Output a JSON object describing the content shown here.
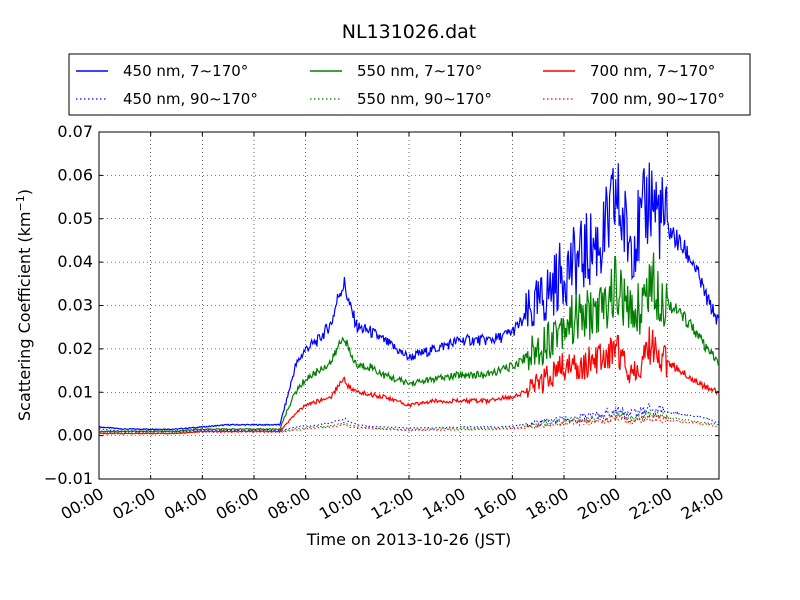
{
  "chart_data": {
    "type": "line",
    "title": "NL131026.dat",
    "xlabel": "Time on 2013-10-26 (JST)",
    "ylabel": "Scattering Coefficient (km",
    "ylabel_exponent": "−1",
    "ylabel_suffix": ")",
    "xlim": [
      "00:00",
      "24:00"
    ],
    "ylim": [
      -0.01,
      0.07
    ],
    "grid": true,
    "legend_position": "top",
    "x_ticks": [
      "00:00",
      "02:00",
      "04:00",
      "06:00",
      "08:00",
      "10:00",
      "12:00",
      "14:00",
      "16:00",
      "18:00",
      "20:00",
      "22:00",
      "24:00"
    ],
    "y_ticks": [
      "−0.01",
      "0.00",
      "0.01",
      "0.02",
      "0.03",
      "0.04",
      "0.05",
      "0.06",
      "0.07"
    ],
    "x_hours": [
      0,
      1,
      2,
      3,
      4,
      5,
      6,
      7,
      7.3,
      7.6,
      8,
      8.5,
      9,
      9.3,
      9.5,
      9.7,
      10,
      10.5,
      11,
      12,
      13,
      14,
      15,
      15.5,
      16,
      16.5,
      17,
      17.5,
      18,
      18.5,
      19,
      19.5,
      19.8,
      20,
      20.5,
      21,
      21.3,
      21.6,
      22,
      22.5,
      23,
      23.5,
      24
    ],
    "series": [
      {
        "name": "450 nm, 7∼170°",
        "color": "#0000ff",
        "style": "solid",
        "values": [
          0.002,
          0.0015,
          0.0015,
          0.0015,
          0.002,
          0.0025,
          0.0025,
          0.0025,
          0.009,
          0.016,
          0.02,
          0.022,
          0.026,
          0.033,
          0.035,
          0.03,
          0.025,
          0.024,
          0.022,
          0.018,
          0.02,
          0.022,
          0.022,
          0.0225,
          0.024,
          0.027,
          0.03,
          0.034,
          0.038,
          0.04,
          0.043,
          0.045,
          0.05,
          0.055,
          0.045,
          0.048,
          0.056,
          0.052,
          0.048,
          0.044,
          0.04,
          0.032,
          0.026
        ]
      },
      {
        "name": "550 nm, 7∼170°",
        "color": "#008000",
        "style": "solid",
        "values": [
          0.001,
          0.001,
          0.001,
          0.001,
          0.0015,
          0.0015,
          0.0015,
          0.0015,
          0.006,
          0.01,
          0.013,
          0.015,
          0.017,
          0.021,
          0.023,
          0.019,
          0.016,
          0.016,
          0.014,
          0.012,
          0.013,
          0.014,
          0.014,
          0.015,
          0.016,
          0.018,
          0.02,
          0.023,
          0.026,
          0.027,
          0.028,
          0.029,
          0.032,
          0.035,
          0.028,
          0.03,
          0.036,
          0.034,
          0.031,
          0.028,
          0.025,
          0.02,
          0.017
        ]
      },
      {
        "name": "700 nm, 7∼170°",
        "color": "#ff0000",
        "style": "solid",
        "values": [
          0.0005,
          0.0005,
          0.0005,
          0.0005,
          0.001,
          0.001,
          0.001,
          0.001,
          0.003,
          0.005,
          0.007,
          0.008,
          0.009,
          0.012,
          0.013,
          0.011,
          0.01,
          0.0095,
          0.009,
          0.007,
          0.008,
          0.008,
          0.008,
          0.0085,
          0.009,
          0.01,
          0.012,
          0.014,
          0.016,
          0.016,
          0.017,
          0.018,
          0.019,
          0.021,
          0.015,
          0.016,
          0.021,
          0.019,
          0.017,
          0.015,
          0.013,
          0.011,
          0.01
        ]
      },
      {
        "name": "450 nm, 90∼170°",
        "color": "#0000ff",
        "style": "dotted",
        "values": [
          0.0015,
          0.001,
          0.001,
          0.001,
          0.0012,
          0.0012,
          0.0012,
          0.0012,
          0.0015,
          0.002,
          0.0022,
          0.0025,
          0.003,
          0.0035,
          0.004,
          0.003,
          0.0025,
          0.0022,
          0.002,
          0.0018,
          0.0018,
          0.002,
          0.002,
          0.002,
          0.0022,
          0.0025,
          0.003,
          0.0035,
          0.004,
          0.004,
          0.0045,
          0.005,
          0.0055,
          0.006,
          0.005,
          0.0055,
          0.0065,
          0.006,
          0.0055,
          0.005,
          0.0045,
          0.004,
          0.003
        ]
      },
      {
        "name": "550 nm, 90∼170°",
        "color": "#008000",
        "style": "dotted",
        "values": [
          0.0008,
          0.0008,
          0.0008,
          0.0008,
          0.001,
          0.001,
          0.001,
          0.001,
          0.0012,
          0.0015,
          0.0018,
          0.002,
          0.0022,
          0.0028,
          0.003,
          0.0025,
          0.002,
          0.0018,
          0.0016,
          0.0014,
          0.0015,
          0.0016,
          0.0016,
          0.0017,
          0.0018,
          0.002,
          0.0025,
          0.003,
          0.0032,
          0.0034,
          0.0036,
          0.004,
          0.0042,
          0.0045,
          0.004,
          0.0042,
          0.005,
          0.0048,
          0.0042,
          0.0038,
          0.0034,
          0.003,
          0.0025
        ]
      },
      {
        "name": "700 nm, 90∼170°",
        "color": "#ff0000",
        "style": "dotted",
        "values": [
          0.0005,
          0.0005,
          0.0005,
          0.0005,
          0.0008,
          0.0008,
          0.0008,
          0.0008,
          0.001,
          0.0012,
          0.0015,
          0.0018,
          0.002,
          0.0022,
          0.0025,
          0.002,
          0.0018,
          0.0016,
          0.0015,
          0.0012,
          0.0013,
          0.0014,
          0.0014,
          0.0015,
          0.0016,
          0.0018,
          0.002,
          0.0024,
          0.0028,
          0.003,
          0.0032,
          0.0034,
          0.0036,
          0.004,
          0.0034,
          0.0036,
          0.0042,
          0.004,
          0.0036,
          0.0032,
          0.003,
          0.0026,
          0.002
        ]
      }
    ]
  }
}
